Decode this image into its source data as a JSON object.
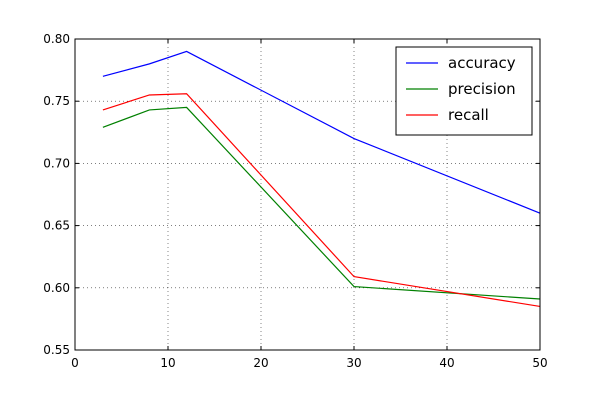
{
  "chart_data": {
    "type": "line",
    "title": "",
    "xlabel": "",
    "ylabel": "",
    "x": [
      3,
      8,
      12,
      30,
      50
    ],
    "xlim": [
      0,
      50
    ],
    "ylim": [
      0.55,
      0.8
    ],
    "xticks": [
      "0",
      "10",
      "20",
      "30",
      "40",
      "50"
    ],
    "yticks": [
      "0.55",
      "0.60",
      "0.65",
      "0.70",
      "0.75",
      "0.80"
    ],
    "grid": true,
    "legend_position": "top-right",
    "series": [
      {
        "name": "accuracy",
        "color": "#0000ff",
        "values": [
          0.77,
          0.78,
          0.79,
          0.72,
          0.66
        ]
      },
      {
        "name": "precision",
        "color": "#008000",
        "values": [
          0.729,
          0.743,
          0.745,
          0.601,
          0.591
        ]
      },
      {
        "name": "recall",
        "color": "#ff0000",
        "values": [
          0.743,
          0.755,
          0.756,
          0.609,
          0.585
        ]
      }
    ]
  }
}
